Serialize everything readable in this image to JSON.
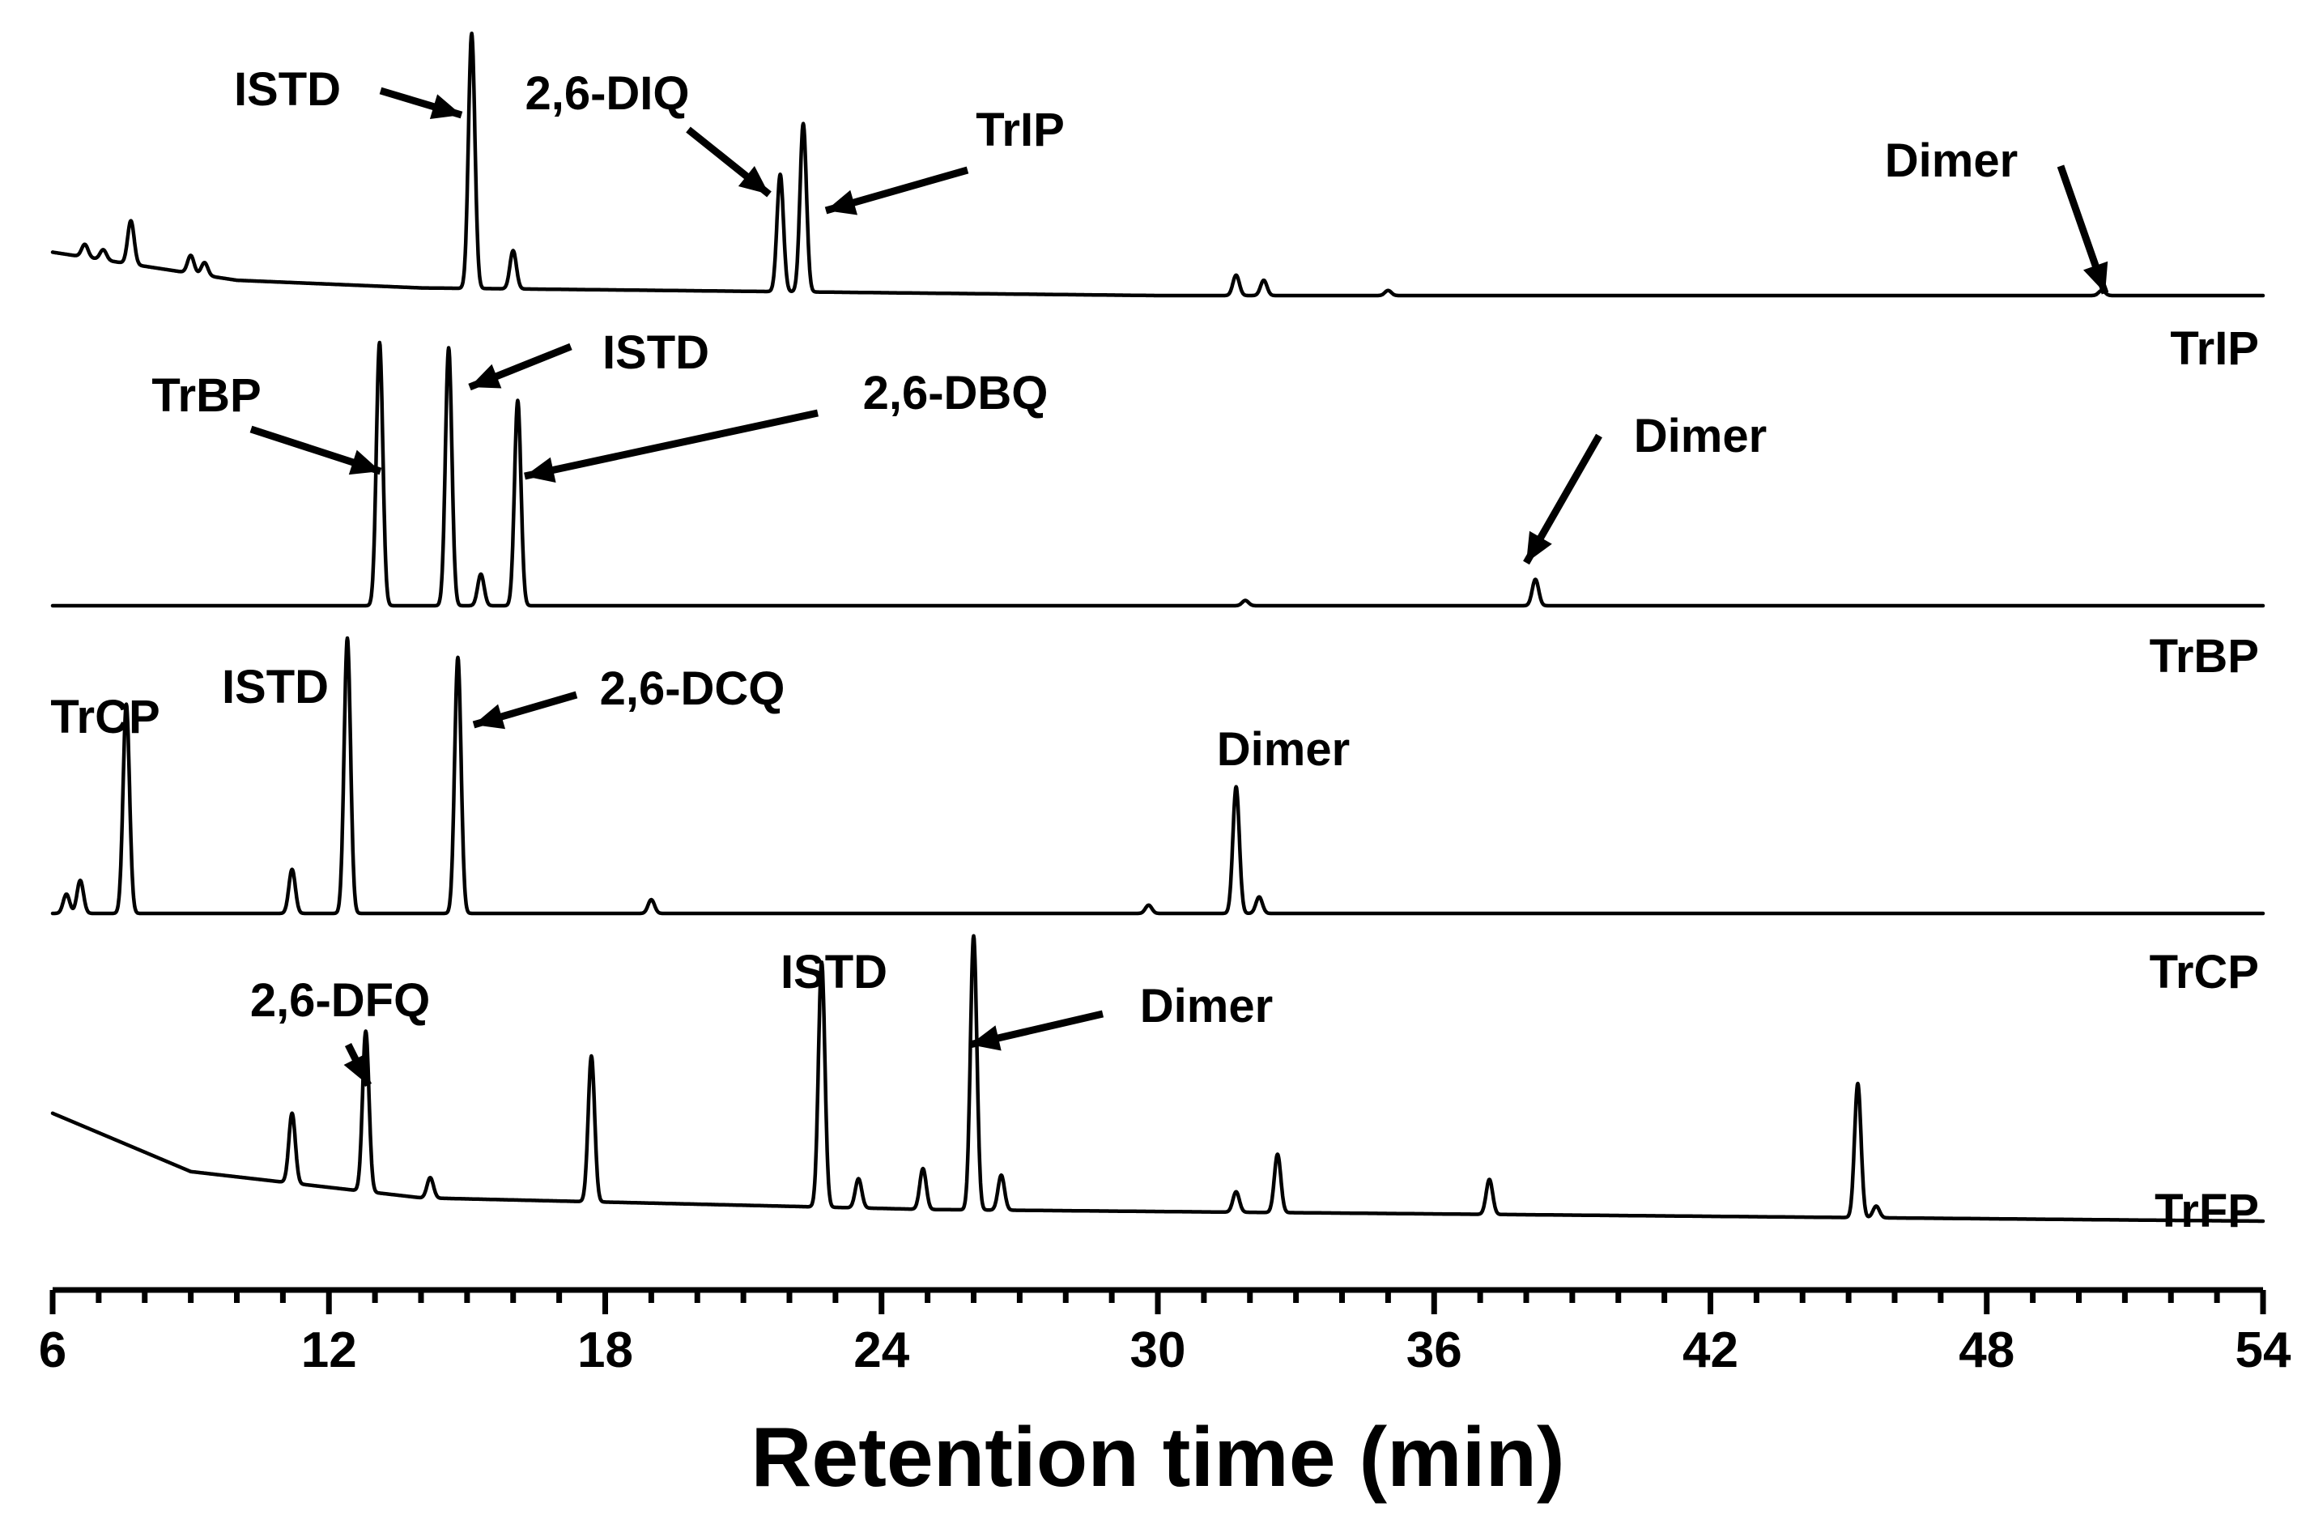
{
  "chart_data": {
    "type": "line",
    "xlabel": "Retention time (min)",
    "xlim": [
      6,
      54
    ],
    "x_ticks": [
      6,
      12,
      18,
      24,
      30,
      36,
      42,
      48,
      54
    ],
    "x_tick_labels": [
      "6",
      "12",
      "18",
      "24",
      "30",
      "36",
      "42",
      "48",
      "54"
    ],
    "grid": false,
    "arrow_color": "#000000",
    "line_color": "#000000",
    "traces": [
      {
        "name": "TrIP",
        "baseline": [
          [
            6,
            0.17
          ],
          [
            10,
            0.06
          ],
          [
            14,
            0.03
          ],
          [
            30,
            0.0
          ],
          [
            54,
            0.0
          ]
        ],
        "peaks": [
          {
            "x": 7.7,
            "h": 0.17
          },
          {
            "x": 6.7,
            "h": 0.05
          },
          {
            "x": 7.1,
            "h": 0.04
          },
          {
            "x": 9.0,
            "h": 0.07
          },
          {
            "x": 9.3,
            "h": 0.05
          },
          {
            "x": 15.1,
            "h": 1.0
          },
          {
            "x": 16.0,
            "h": 0.15
          },
          {
            "x": 21.8,
            "h": 0.46
          },
          {
            "x": 22.3,
            "h": 0.66
          },
          {
            "x": 31.7,
            "h": 0.08
          },
          {
            "x": 32.3,
            "h": 0.06
          },
          {
            "x": 35.0,
            "h": 0.02
          },
          {
            "x": 50.5,
            "h": 0.02
          }
        ],
        "labels": [
          {
            "text": "ISTD",
            "x": 15.1
          },
          {
            "text": "2,6-DIQ",
            "x": 21.8
          },
          {
            "text": "TrIP",
            "x": 22.3
          },
          {
            "text": "Dimer",
            "x": 50.5
          }
        ]
      },
      {
        "name": "TrBP",
        "baseline": [
          [
            6,
            0.0
          ],
          [
            54,
            0.0
          ]
        ],
        "peaks": [
          {
            "x": 13.1,
            "h": 1.0
          },
          {
            "x": 14.6,
            "h": 0.98
          },
          {
            "x": 15.3,
            "h": 0.12
          },
          {
            "x": 16.1,
            "h": 0.78
          },
          {
            "x": 38.2,
            "h": 0.1
          },
          {
            "x": 31.9,
            "h": 0.02
          }
        ],
        "labels": [
          {
            "text": "TrBP",
            "x": 13.1
          },
          {
            "text": "ISTD",
            "x": 14.6
          },
          {
            "text": "2,6-DBQ",
            "x": 16.1
          },
          {
            "text": "Dimer",
            "x": 38.2
          }
        ]
      },
      {
        "name": "TrCP",
        "baseline": [
          [
            6,
            0.0
          ],
          [
            54,
            0.0
          ]
        ],
        "peaks": [
          {
            "x": 6.3,
            "h": 0.07
          },
          {
            "x": 6.6,
            "h": 0.12
          },
          {
            "x": 7.6,
            "h": 0.76
          },
          {
            "x": 11.2,
            "h": 0.16
          },
          {
            "x": 12.4,
            "h": 1.0
          },
          {
            "x": 14.8,
            "h": 0.93
          },
          {
            "x": 19.0,
            "h": 0.05
          },
          {
            "x": 29.8,
            "h": 0.03
          },
          {
            "x": 31.7,
            "h": 0.46
          },
          {
            "x": 32.2,
            "h": 0.06
          }
        ],
        "labels": [
          {
            "text": "TrCP",
            "x": 7.6
          },
          {
            "text": "ISTD",
            "x": 12.4
          },
          {
            "text": "2,6-DCQ",
            "x": 14.8
          },
          {
            "text": "Dimer",
            "x": 31.7
          }
        ]
      },
      {
        "name": "TrFP",
        "baseline": [
          [
            6,
            0.37
          ],
          [
            9,
            0.17
          ],
          [
            14,
            0.08
          ],
          [
            25,
            0.04
          ],
          [
            54,
            0.0
          ]
        ],
        "peaks": [
          {
            "x": 11.2,
            "h": 0.24
          },
          {
            "x": 12.8,
            "h": 0.55
          },
          {
            "x": 14.2,
            "h": 0.07
          },
          {
            "x": 17.7,
            "h": 0.5
          },
          {
            "x": 22.7,
            "h": 0.84
          },
          {
            "x": 23.5,
            "h": 0.1
          },
          {
            "x": 24.9,
            "h": 0.14
          },
          {
            "x": 26.0,
            "h": 0.94
          },
          {
            "x": 26.6,
            "h": 0.12
          },
          {
            "x": 31.7,
            "h": 0.07
          },
          {
            "x": 32.6,
            "h": 0.2
          },
          {
            "x": 37.2,
            "h": 0.12
          },
          {
            "x": 45.2,
            "h": 0.46
          },
          {
            "x": 45.6,
            "h": 0.04
          }
        ],
        "labels": [
          {
            "text": "2,6-DFQ",
            "x": 12.8
          },
          {
            "text": "ISTD",
            "x": 22.7
          },
          {
            "text": "Dimer",
            "x": 26.0
          }
        ]
      }
    ]
  }
}
